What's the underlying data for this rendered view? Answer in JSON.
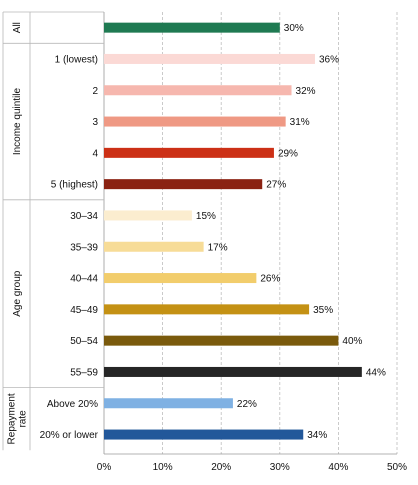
{
  "chart_data": {
    "type": "bar",
    "orientation": "horizontal",
    "xlim": [
      0,
      50
    ],
    "x_ticks": [
      "0%",
      "10%",
      "20%",
      "30%",
      "40%",
      "50%"
    ],
    "value_suffix": "%",
    "grid": "vertical dashed",
    "groups": [
      {
        "label": "",
        "items": [
          {
            "category": "All",
            "value": 30,
            "value_label": "30%",
            "color": "#1f7a52"
          }
        ]
      },
      {
        "label": "Income quintile",
        "items": [
          {
            "category": "1 (lowest)",
            "value": 36,
            "value_label": "36%",
            "color": "#fbd9d5"
          },
          {
            "category": "2",
            "value": 32,
            "value_label": "32%",
            "color": "#f6b7ae"
          },
          {
            "category": "3",
            "value": 31,
            "value_label": "31%",
            "color": "#ef9984"
          },
          {
            "category": "4",
            "value": 29,
            "value_label": "29%",
            "color": "#cc3016"
          },
          {
            "category": "5 (highest)",
            "value": 27,
            "value_label": "27%",
            "color": "#8a2212"
          }
        ]
      },
      {
        "label": "Age group",
        "items": [
          {
            "category": "30–34",
            "value": 15,
            "value_label": "15%",
            "color": "#fbedcf"
          },
          {
            "category": "35–39",
            "value": 17,
            "value_label": "17%",
            "color": "#f7dc97"
          },
          {
            "category": "40–44",
            "value": 26,
            "value_label": "26%",
            "color": "#f2cd6c"
          },
          {
            "category": "45–49",
            "value": 35,
            "value_label": "35%",
            "color": "#c49114"
          },
          {
            "category": "50–54",
            "value": 40,
            "value_label": "40%",
            "color": "#7a5a0c"
          },
          {
            "category": "55–59",
            "value": 44,
            "value_label": "44%",
            "color": "#262626"
          }
        ]
      },
      {
        "label": "Repayment rate",
        "label_lines": [
          "Repayment",
          "rate"
        ],
        "items": [
          {
            "category": "Above 20%",
            "value": 22,
            "value_label": "22%",
            "color": "#7fb1e3"
          },
          {
            "category": "20% or lower",
            "value": 34,
            "value_label": "34%",
            "color": "#22589a"
          }
        ]
      }
    ]
  }
}
